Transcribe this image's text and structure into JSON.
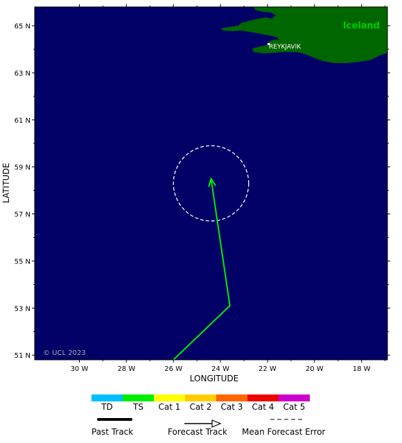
{
  "map": {
    "land_label": "Iceland",
    "city_label": "REYKJAVIK",
    "copyright": "© UCL 2023",
    "x_axis_title": "LONGITUDE",
    "y_axis_title": "LATITUDE",
    "lat_ticks": [
      "65 N",
      "63 N",
      "61 N",
      "59 N",
      "57 N",
      "55 N",
      "53 N",
      "51 N"
    ],
    "lon_ticks": [
      "30 W",
      "28 W",
      "26 W",
      "24 W",
      "22 W",
      "20 W",
      "18 W"
    ],
    "lat_values": [
      65,
      63,
      61,
      59,
      57,
      55,
      53,
      51
    ],
    "lon_values": [
      -30,
      -28,
      -26,
      -24,
      -22,
      -20,
      -18
    ],
    "lat_range": [
      50.8,
      65.8
    ],
    "lon_range": [
      -31.9,
      -16.9
    ],
    "colors": {
      "ocean": "#000066",
      "land": "#006600",
      "land_label": "#00cc00",
      "track": "#00ee00",
      "error_circle": "#ffffff"
    },
    "track_points": [
      {
        "lon": -26.0,
        "lat": 50.8
      },
      {
        "lon": -23.6,
        "lat": 53.1
      },
      {
        "lon": -24.4,
        "lat": 58.5
      }
    ],
    "error_circle": {
      "center_lon": -24.4,
      "center_lat": 58.3,
      "radius_deg_lat": 1.6
    }
  },
  "legend": {
    "categories": [
      {
        "label": "TD",
        "color": "#00bfff"
      },
      {
        "label": "TS",
        "color": "#00ee00"
      },
      {
        "label": "Cat 1",
        "color": "#ffff00"
      },
      {
        "label": "Cat 2",
        "color": "#ffcc00"
      },
      {
        "label": "Cat 3",
        "color": "#ff6600"
      },
      {
        "label": "Cat 4",
        "color": "#ee0000"
      },
      {
        "label": "Cat 5",
        "color": "#cc00cc"
      }
    ],
    "past_track": "Past Track",
    "forecast_track": "Forecast Track",
    "mean_error": "Mean Forecast Error"
  }
}
